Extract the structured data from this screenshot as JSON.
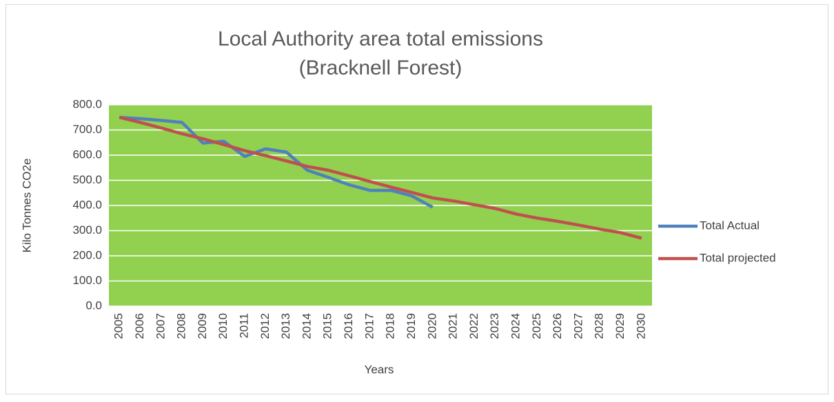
{
  "chart_data": {
    "type": "line",
    "title": "Local Authority area total emissions",
    "subtitle": "(Bracknell Forest)",
    "x_label": "Years",
    "y_label": "Kilo Tonnes CO2e",
    "categories": [
      "2005",
      "2006",
      "2007",
      "2008",
      "2009",
      "2010",
      "2011",
      "2012",
      "2013",
      "2014",
      "2015",
      "2016",
      "2017",
      "2018",
      "2019",
      "2020",
      "2021",
      "2022",
      "2023",
      "2024",
      "2025",
      "2026",
      "2027",
      "2028",
      "2029",
      "2030"
    ],
    "series": [
      {
        "name": "Total Actual",
        "color": "#4f81bd",
        "values": [
          750,
          745,
          738,
          730,
          648,
          655,
          595,
          625,
          612,
          540,
          512,
          482,
          460,
          460,
          438,
          393,
          null,
          null,
          null,
          null,
          null,
          null,
          null,
          null,
          null,
          null
        ]
      },
      {
        "name": "Total projected",
        "color": "#c0504d",
        "values": [
          750,
          730,
          708,
          685,
          665,
          642,
          618,
          598,
          577,
          555,
          540,
          518,
          495,
          473,
          452,
          430,
          418,
          403,
          388,
          366,
          350,
          337,
          322,
          306,
          292,
          270
        ]
      }
    ],
    "ylim": [
      0,
      800
    ],
    "yticks": [
      {
        "value": 0,
        "label": "0.0"
      },
      {
        "value": 100,
        "label": "100.0"
      },
      {
        "value": 200,
        "label": "200.0"
      },
      {
        "value": 300,
        "label": "300.0"
      },
      {
        "value": 400,
        "label": "400.0"
      },
      {
        "value": 500,
        "label": "500.0"
      },
      {
        "value": 600,
        "label": "600.0"
      },
      {
        "value": 700,
        "label": "700.0"
      },
      {
        "value": 800,
        "label": "800.0"
      }
    ],
    "grid": true,
    "plot_background": "#92d050",
    "legend": "right"
  }
}
